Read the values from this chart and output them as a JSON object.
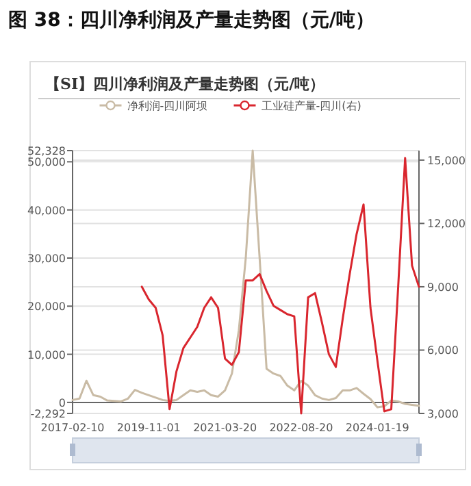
{
  "chart_data": {
    "type": "line",
    "title": "图 38：四川净利润及产量走势图（元/吨）",
    "subtitle": "【SI】四川净利润及产量走势图（元/吨）",
    "categories": [
      "2017-02-10",
      null,
      null,
      null,
      null,
      null,
      null,
      null,
      null,
      null,
      null,
      "2019-11-01",
      null,
      null,
      null,
      null,
      null,
      null,
      null,
      null,
      null,
      null,
      "2021-03-20",
      null,
      null,
      null,
      null,
      null,
      null,
      null,
      null,
      null,
      null,
      "2022-08-20",
      null,
      null,
      null,
      null,
      null,
      null,
      null,
      null,
      null,
      null,
      "2024-01-19",
      null,
      null,
      null,
      null,
      null,
      null
    ],
    "series": [
      {
        "name": "净利润-四川阿坝",
        "color": "#c9bba5",
        "values": [
          500,
          800,
          4500,
          1500,
          1200,
          400,
          300,
          200,
          800,
          2600,
          2000,
          1500,
          1000,
          500,
          300,
          500,
          1500,
          2500,
          2200,
          2500,
          1500,
          1200,
          2500,
          6000,
          15000,
          30000,
          52328,
          30000,
          7000,
          6000,
          5500,
          3500,
          2500,
          4500,
          3500,
          1500,
          800,
          500,
          900,
          2500,
          2500,
          3000,
          1800,
          700,
          -1000,
          -800,
          400,
          200,
          -300,
          -500,
          -700
        ]
      },
      {
        "name": "工业硅产量-四川(右)",
        "color": "#d9262e",
        "axis": "y2",
        "values": [
          null,
          null,
          null,
          null,
          null,
          null,
          null,
          null,
          null,
          null,
          9000,
          8400,
          8000,
          6700,
          3200,
          5000,
          6100,
          6600,
          7100,
          8000,
          8500,
          8000,
          5600,
          5300,
          5900,
          9300,
          9300,
          9600,
          8800,
          8100,
          7900,
          7700,
          7600,
          3000,
          8500,
          8700,
          7300,
          5800,
          5200,
          7500,
          9600,
          11500,
          12900,
          8000,
          5500,
          3100,
          3200,
          9000,
          15100,
          10000,
          9000
        ]
      }
    ],
    "ylim": [
      -2292,
      52328
    ],
    "yticks": [
      {
        "value": -2292,
        "label": "-2,292"
      },
      {
        "value": 0,
        "label": "0"
      },
      {
        "value": 10000,
        "label": "10,000"
      },
      {
        "value": 20000,
        "label": "20,000"
      },
      {
        "value": 30000,
        "label": "30,000"
      },
      {
        "value": 40000,
        "label": "40,000"
      },
      {
        "value": 50000,
        "label": "50,000"
      },
      {
        "value": 52328,
        "label": "52,328"
      }
    ],
    "y2lim": [
      3000,
      15450
    ],
    "y2ticks": [
      {
        "value": 3000,
        "label": "3,000"
      },
      {
        "value": 6000,
        "label": "6,000"
      },
      {
        "value": 9000,
        "label": "9,000"
      },
      {
        "value": 12000,
        "label": "12,000"
      },
      {
        "value": 15000,
        "label": "15,000"
      }
    ],
    "grid": "y",
    "legend": "top",
    "marker": "none",
    "line_style": "solid"
  }
}
